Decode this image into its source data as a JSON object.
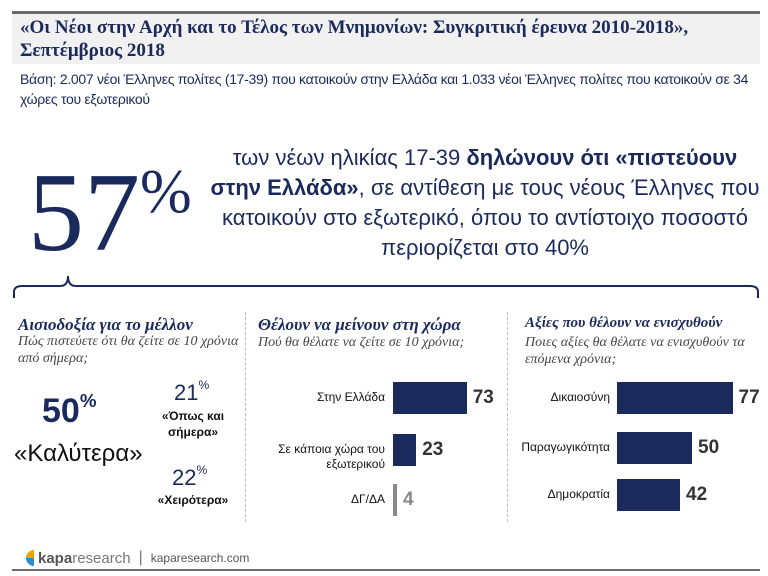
{
  "header": {
    "title": "«Οι Νέοι στην Αρχή και το Τέλος των Μνημονίων: Συγκριτική έρευνα 2010-2018», Σεπτέμβριος 2018",
    "base": "Βάση: 2.007 νέοι Έλληνες πολίτες (17-39) που κατοικούν στην Ελλάδα και 1.033 νέοι Έλληνες πολίτες που κατοικούν σε 34 χώρες του εξωτερικού"
  },
  "headline": {
    "number": "57",
    "percent": "%",
    "text_1": "των νέων ηλικίας 17-39 ",
    "text_bold": "δηλώνουν ότι «πιστεύουν στην Ελλάδα»",
    "text_2": ", σε αντίθεση με τους νέους Έλληνες που κατοικούν στο εξωτερικό, όπου το αντίστοιχο ποσοστό περιορίζεται στο 40%"
  },
  "optimism": {
    "title": "Αισιοδοξία για το μέλλον",
    "subtitle": "Πώς πιστεύετε ότι θα ζείτε σε 10 χρόνια από σήμερα;",
    "better": {
      "value": "50",
      "pct": "%",
      "label": "«Καλύτερα»"
    },
    "same": {
      "value": "21",
      "pct": "%",
      "label": "«Όπως και σήμερα»"
    },
    "worse": {
      "value": "22",
      "pct": "%",
      "label": "«Χειρότερα»"
    }
  },
  "stay": {
    "title": "Θέλουν να μείνουν στη χώρα",
    "subtitle": "Πού θα θέλατε να ζείτε σε 10 χρόνια;",
    "items": [
      {
        "label": "Στην Ελλάδα",
        "value": 73,
        "color": "#1b2a5c"
      },
      {
        "label": "Σε κάποια χώρα του εξωτερικού",
        "value": 23,
        "color": "#1b2a5c"
      },
      {
        "label": "ΔΓ/ΔΑ",
        "value": 4,
        "color": "#8a8a8a"
      }
    ]
  },
  "values": {
    "title": "Αξίες που θέλουν να ενισχυθούν",
    "subtitle": "Ποιες αξίες θα θέλατε να ενισχυθούν τα επόμενα χρόνια;",
    "items": [
      {
        "label": "Δικαιοσύνη",
        "value": 77,
        "color": "#1b2a5c"
      },
      {
        "label": "Παραγωγικότητα",
        "value": 50,
        "color": "#1b2a5c"
      },
      {
        "label": "Δημοκρατία",
        "value": 42,
        "color": "#1b2a5c"
      }
    ]
  },
  "footer": {
    "logo_a": "kapa",
    "logo_b": "research",
    "site": "kaparesearch.com"
  }
}
